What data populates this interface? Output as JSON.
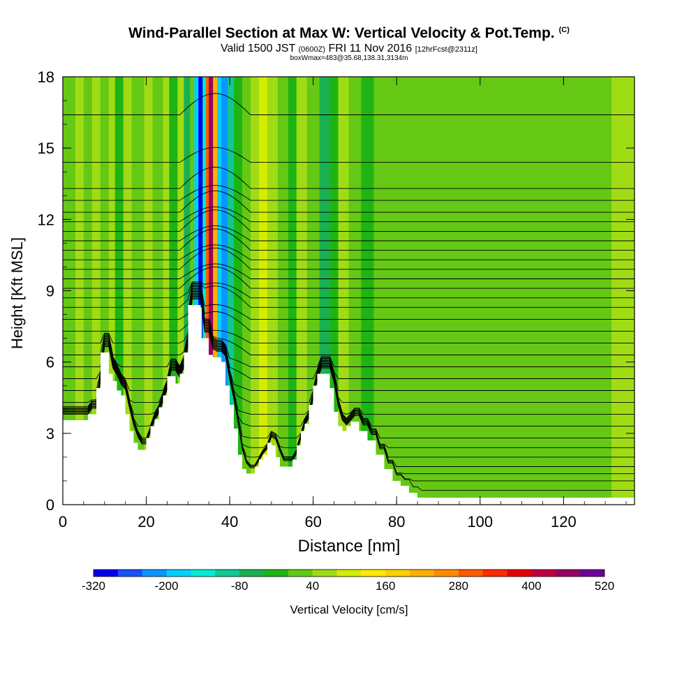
{
  "header": {
    "title": "Wind-Parallel Section at Max W: Vertical Velocity & Pot.Temp.",
    "copyright": "(C)",
    "valid_prefix": "Valid 1500 JST",
    "valid_utc": "(0600Z)",
    "valid_date": "FRI 11 Nov 2016",
    "fcst": "[12hrFcst@2311z]",
    "boxwmax": "boxWmax=483@35.68,138.31,3134m"
  },
  "chart_data": {
    "type": "heatmap",
    "title": "Wind-Parallel Section at Max W: Vertical Velocity & Pot.Temp.",
    "xlabel": "Distance [nm]",
    "ylabel": "Height [Kft MSL]",
    "xlim": [
      0,
      137
    ],
    "ylim": [
      0,
      18
    ],
    "xticks": [
      0,
      20,
      40,
      60,
      80,
      100,
      120
    ],
    "yticks": [
      0,
      3,
      6,
      9,
      12,
      15,
      18
    ],
    "colorbar": {
      "label": "Vertical Velocity [cm/s]",
      "tick_labels": [
        "-320",
        "-200",
        "-80",
        "40",
        "160",
        "280",
        "400",
        "520"
      ],
      "levels": [
        -320,
        -280,
        -240,
        -200,
        -160,
        -120,
        -80,
        -40,
        0,
        40,
        80,
        120,
        160,
        200,
        240,
        280,
        320,
        360,
        400,
        440,
        480,
        520
      ],
      "colors": [
        "#0000ee",
        "#1a50ff",
        "#0a96ff",
        "#00d0ff",
        "#00ecd0",
        "#10c890",
        "#18b050",
        "#1eb414",
        "#64c814",
        "#a0dc14",
        "#d4ec00",
        "#ffea00",
        "#ffd000",
        "#ffb000",
        "#ff8c00",
        "#ff5a00",
        "#ff2a00",
        "#e80000",
        "#c0003c",
        "#960064",
        "#6e0096"
      ]
    },
    "terrain_kft": [
      [
        0,
        3.55
      ],
      [
        5,
        3.55
      ],
      [
        6,
        3.8
      ],
      [
        8,
        4.9
      ],
      [
        9,
        6.4
      ],
      [
        10,
        6.4
      ],
      [
        11,
        5.5
      ],
      [
        12,
        5.2
      ],
      [
        13,
        4.8
      ],
      [
        14,
        4.6
      ],
      [
        15,
        3.8
      ],
      [
        16,
        3.1
      ],
      [
        17,
        2.6
      ],
      [
        18,
        2.3
      ],
      [
        19,
        2.3
      ],
      [
        20,
        2.8
      ],
      [
        21,
        3.3
      ],
      [
        22,
        3.6
      ],
      [
        23,
        4.1
      ],
      [
        24,
        4.6
      ],
      [
        25,
        5.4
      ],
      [
        26,
        5.4
      ],
      [
        27,
        5.1
      ],
      [
        28,
        5.5
      ],
      [
        29,
        6.4
      ],
      [
        30,
        8.4
      ],
      [
        31,
        8.4
      ],
      [
        32,
        8.4
      ],
      [
        33,
        8.3
      ],
      [
        33.3,
        7.0
      ],
      [
        34,
        7.0
      ],
      [
        35,
        6.3
      ],
      [
        36,
        6.2
      ],
      [
        37,
        6.2
      ],
      [
        38,
        6.0
      ],
      [
        39,
        5.0
      ],
      [
        40,
        4.2
      ],
      [
        41,
        3.2
      ],
      [
        42,
        2.1
      ],
      [
        43,
        1.5
      ],
      [
        44,
        1.3
      ],
      [
        45,
        1.3
      ],
      [
        46,
        1.6
      ],
      [
        47,
        1.9
      ],
      [
        48,
        2.1
      ],
      [
        49,
        2.6
      ],
      [
        50,
        2.5
      ],
      [
        51,
        2.0
      ],
      [
        52,
        1.6
      ],
      [
        54,
        1.6
      ],
      [
        55,
        1.9
      ],
      [
        56,
        2.5
      ],
      [
        57,
        3.1
      ],
      [
        58,
        3.4
      ],
      [
        59,
        4.2
      ],
      [
        60,
        5.0
      ],
      [
        61,
        5.5
      ],
      [
        62,
        5.5
      ],
      [
        63,
        5.5
      ],
      [
        64,
        4.9
      ],
      [
        65,
        3.9
      ],
      [
        66,
        3.3
      ],
      [
        67,
        3.1
      ],
      [
        68,
        3.3
      ],
      [
        69,
        3.5
      ],
      [
        70,
        3.5
      ],
      [
        71,
        3.1
      ],
      [
        73,
        2.7
      ],
      [
        75,
        2.1
      ],
      [
        77,
        1.5
      ],
      [
        79,
        1.0
      ],
      [
        81,
        0.8
      ],
      [
        83,
        0.5
      ],
      [
        85,
        0.3
      ],
      [
        137,
        0.3
      ]
    ],
    "cells": [
      {
        "x": 0,
        "w": 3,
        "value": 20
      },
      {
        "x": 3,
        "w": 2,
        "value": 55
      },
      {
        "x": 5,
        "w": 2,
        "value": 0
      },
      {
        "x": 7,
        "w": 2,
        "value": 70
      },
      {
        "x": 9,
        "w": 2,
        "value": 10
      },
      {
        "x": 11,
        "w": 1.5,
        "value": 45
      },
      {
        "x": 12.5,
        "w": 2,
        "value": -15
      },
      {
        "x": 14.5,
        "w": 2,
        "value": 60
      },
      {
        "x": 16.5,
        "w": 3,
        "value": 10
      },
      {
        "x": 19.5,
        "w": 2,
        "value": 55
      },
      {
        "x": 21.5,
        "w": 2.5,
        "value": 5
      },
      {
        "x": 24,
        "w": 1.5,
        "value": 70
      },
      {
        "x": 25.5,
        "w": 2,
        "value": -10
      },
      {
        "x": 27.5,
        "w": 1.5,
        "value": 55
      },
      {
        "x": 29,
        "w": 1.5,
        "value": -60
      },
      {
        "x": 30.5,
        "w": 1,
        "value": 30
      },
      {
        "x": 31.5,
        "w": 1,
        "value": -190
      },
      {
        "x": 32.5,
        "w": 1,
        "value": -310
      },
      {
        "x": 33.5,
        "w": 0.8,
        "value": -140
      },
      {
        "x": 34.3,
        "w": 0.7,
        "value": 300
      },
      {
        "x": 35,
        "w": 1,
        "value": 460
      },
      {
        "x": 36,
        "w": 1,
        "value": 230
      },
      {
        "x": 37,
        "w": 1,
        "value": -170
      },
      {
        "x": 38,
        "w": 1.5,
        "value": -230
      },
      {
        "x": 39.5,
        "w": 1.5,
        "value": -110
      },
      {
        "x": 41,
        "w": 2,
        "value": -40
      },
      {
        "x": 43,
        "w": 2,
        "value": 15
      },
      {
        "x": 45,
        "w": 2,
        "value": 60
      },
      {
        "x": 47,
        "w": 2,
        "value": 110
      },
      {
        "x": 49,
        "w": 2.5,
        "value": 75
      },
      {
        "x": 51.5,
        "w": 2.5,
        "value": 30
      },
      {
        "x": 54,
        "w": 2,
        "value": -20
      },
      {
        "x": 56,
        "w": 2.5,
        "value": 50
      },
      {
        "x": 58.5,
        "w": 3,
        "value": 25
      },
      {
        "x": 61.5,
        "w": 2.5,
        "value": -55
      },
      {
        "x": 64,
        "w": 2,
        "value": -20
      },
      {
        "x": 66,
        "w": 2.5,
        "value": 40
      },
      {
        "x": 68.5,
        "w": 3,
        "value": 10
      },
      {
        "x": 71.5,
        "w": 3,
        "value": -5
      },
      {
        "x": 74.5,
        "w": 4,
        "value": 20
      },
      {
        "x": 78.5,
        "w": 6,
        "value": 10
      },
      {
        "x": 84.5,
        "w": 8,
        "value": 15
      },
      {
        "x": 92.5,
        "w": 10,
        "value": 10
      },
      {
        "x": 102.5,
        "w": 12,
        "value": 15
      },
      {
        "x": 114.5,
        "w": 10,
        "value": 10
      },
      {
        "x": 124.5,
        "w": 7,
        "value": 25
      },
      {
        "x": 131.5,
        "w": 5.5,
        "value": 50
      }
    ],
    "isentropes_kft": [
      0.6,
      1.0,
      1.3,
      1.6,
      2.0,
      2.4,
      2.8,
      3.3,
      3.8,
      4.3,
      4.8,
      5.3,
      5.8,
      6.3,
      6.8,
      7.3,
      7.8,
      8.3,
      8.7,
      9.1,
      9.5,
      9.9,
      10.3,
      10.7,
      11.1,
      11.5,
      11.9,
      12.3,
      12.8,
      13.3,
      14.4,
      16.4
    ]
  }
}
